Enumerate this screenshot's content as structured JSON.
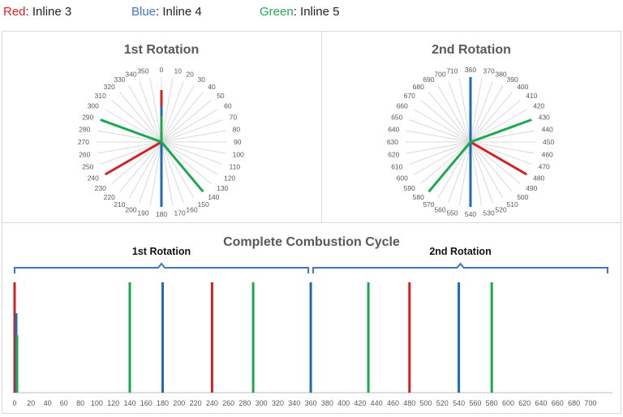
{
  "legend": [
    {
      "key": "Red",
      "sep": ":",
      "label": "Inline 3",
      "color": "#e02020"
    },
    {
      "key": "Blue",
      "sep": ":",
      "label": "Inline 4",
      "color": "#3e76c2"
    },
    {
      "key": "Green",
      "sep": ":",
      "label": "Inline 5",
      "color": "#1faa4f"
    }
  ],
  "colors": {
    "red": "#d42020",
    "blue": "#1f6bb5",
    "green": "#1aa850",
    "brace": "#4472c4",
    "spoke": "#d9d9d9"
  },
  "chart_data": [
    {
      "type": "radar",
      "title": "1st Rotation",
      "angle_labels": [
        0,
        10,
        20,
        30,
        40,
        50,
        60,
        70,
        80,
        90,
        100,
        110,
        120,
        130,
        140,
        150,
        160,
        170,
        180,
        190,
        200,
        210,
        220,
        230,
        240,
        250,
        260,
        270,
        280,
        290,
        300,
        310,
        320,
        330,
        340,
        350
      ],
      "radial_max": 1,
      "series": [
        {
          "name": "Inline 3",
          "color_key": "red",
          "spokes": [
            {
              "angle": 0,
              "value": 0.8
            },
            {
              "angle": 240,
              "value": 1
            }
          ]
        },
        {
          "name": "Inline 4",
          "color_key": "blue",
          "spokes": [
            {
              "angle": 0,
              "value": 0.55
            },
            {
              "angle": 180,
              "value": 1
            }
          ]
        },
        {
          "name": "Inline 5",
          "color_key": "green",
          "spokes": [
            {
              "angle": 0,
              "value": 0.4
            },
            {
              "angle": 140,
              "value": 1
            },
            {
              "angle": 290,
              "value": 1
            }
          ]
        }
      ]
    },
    {
      "type": "radar",
      "title": "2nd Rotation",
      "angle_labels": [
        360,
        370,
        380,
        390,
        400,
        410,
        420,
        430,
        440,
        450,
        460,
        470,
        480,
        490,
        500,
        510,
        520,
        530,
        540,
        550,
        560,
        570,
        580,
        590,
        600,
        610,
        620,
        630,
        640,
        650,
        660,
        670,
        680,
        690,
        700,
        710
      ],
      "radial_max": 1,
      "series": [
        {
          "name": "Inline 3",
          "color_key": "red",
          "spokes": [
            {
              "angle": 480,
              "value": 1
            }
          ]
        },
        {
          "name": "Inline 4",
          "color_key": "blue",
          "spokes": [
            {
              "angle": 360,
              "value": 1
            },
            {
              "angle": 540,
              "value": 1
            }
          ]
        },
        {
          "name": "Inline 5",
          "color_key": "green",
          "spokes": [
            {
              "angle": 430,
              "value": 1
            },
            {
              "angle": 580,
              "value": 1
            }
          ]
        }
      ]
    },
    {
      "type": "bar",
      "title": "Complete Combustion Cycle",
      "xlim": [
        0,
        710
      ],
      "ylim": [
        0,
        1
      ],
      "x_ticks": [
        0,
        20,
        40,
        60,
        80,
        100,
        120,
        140,
        160,
        180,
        200,
        220,
        240,
        260,
        280,
        300,
        320,
        340,
        360,
        380,
        400,
        420,
        440,
        460,
        480,
        500,
        520,
        540,
        560,
        580,
        600,
        620,
        640,
        660,
        680,
        700
      ],
      "brace_labels": [
        {
          "label": "1st Rotation",
          "from": 0,
          "to": 360
        },
        {
          "label": "2nd Rotation",
          "from": 360,
          "to": 720
        }
      ],
      "series": [
        {
          "name": "Inline 3",
          "color_key": "red",
          "points": [
            {
              "x": 0,
              "y": 1
            },
            {
              "x": 240,
              "y": 1
            },
            {
              "x": 480,
              "y": 1
            }
          ]
        },
        {
          "name": "Inline 4",
          "color_key": "blue",
          "points": [
            {
              "x": 2,
              "y": 0.72
            },
            {
              "x": 180,
              "y": 1
            },
            {
              "x": 360,
              "y": 1
            },
            {
              "x": 540,
              "y": 1
            }
          ]
        },
        {
          "name": "Inline 5",
          "color_key": "green",
          "points": [
            {
              "x": 3,
              "y": 0.52
            },
            {
              "x": 140,
              "y": 1
            },
            {
              "x": 290,
              "y": 1
            },
            {
              "x": 430,
              "y": 1
            },
            {
              "x": 580,
              "y": 1
            }
          ]
        }
      ]
    }
  ]
}
